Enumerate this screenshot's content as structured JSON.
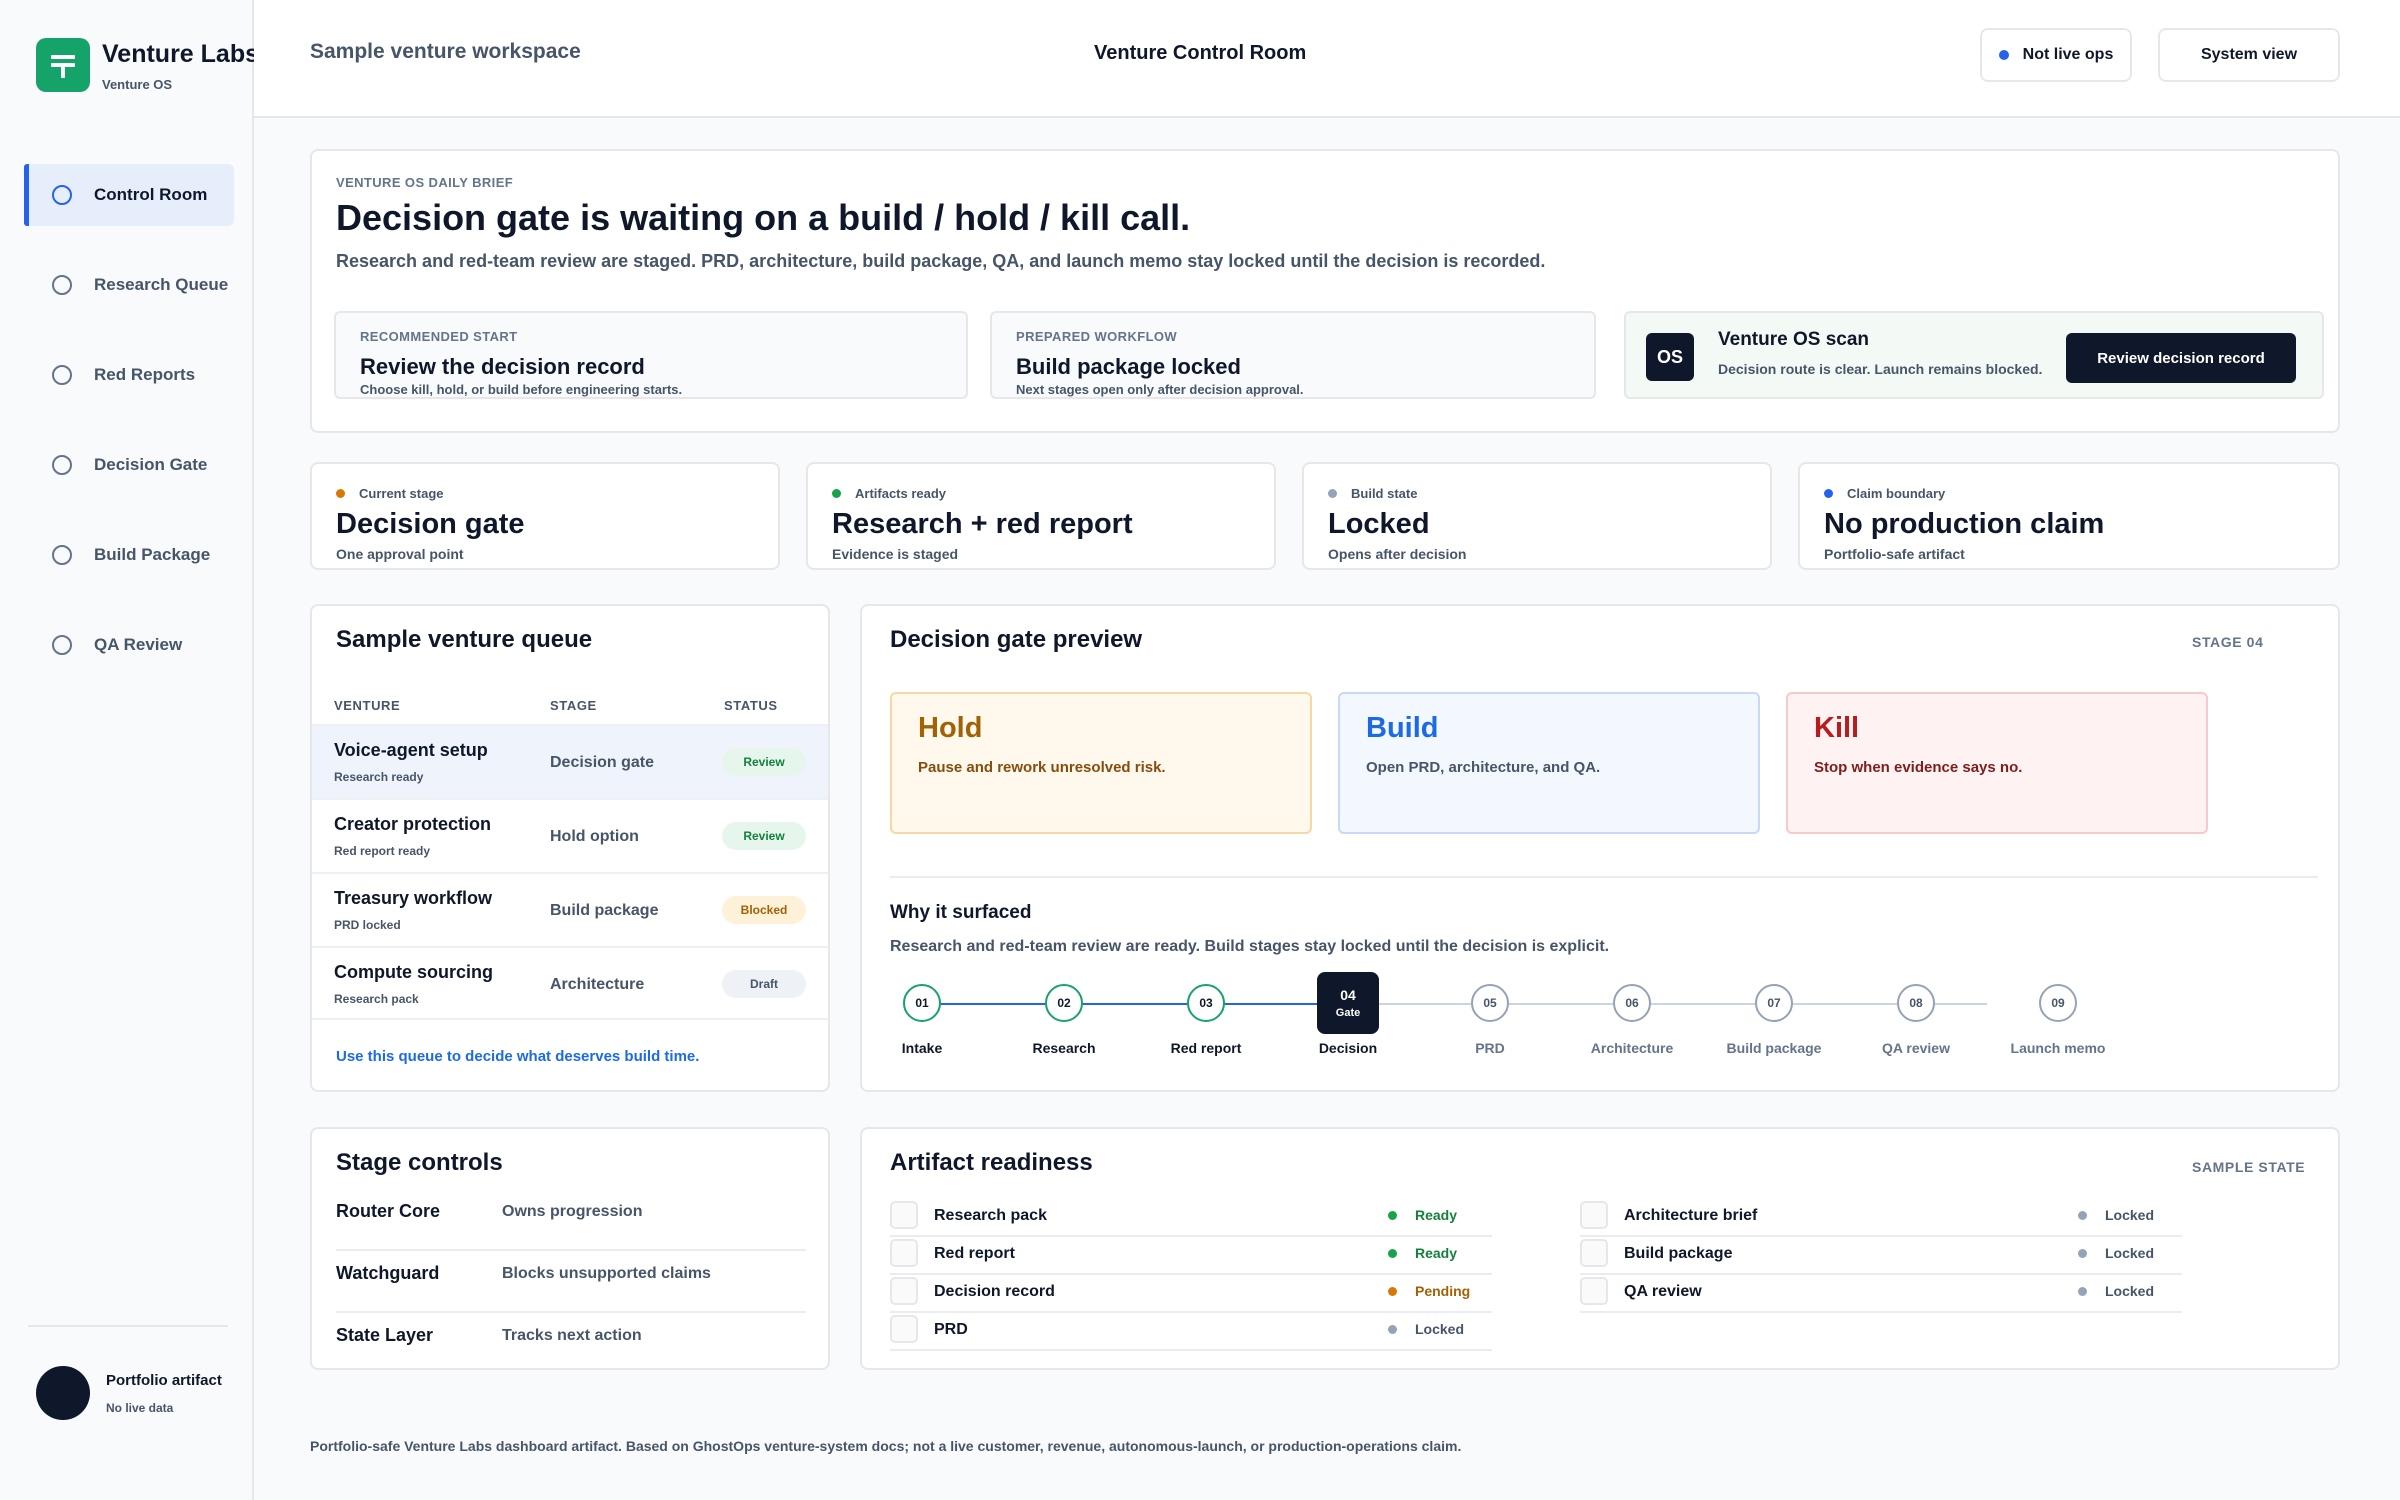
{
  "sidebar": {
    "brand": {
      "name": "Venture Labs",
      "subtitle": "Venture OS",
      "icon": "venture-labs-logo"
    },
    "nav": [
      {
        "label": "Control Room",
        "active": true
      },
      {
        "label": "Research Queue"
      },
      {
        "label": "Red Reports"
      },
      {
        "label": "Decision Gate"
      },
      {
        "label": "Build Package"
      },
      {
        "label": "QA Review"
      }
    ],
    "portfolio": {
      "title": "Portfolio artifact",
      "subtitle": "No live data"
    }
  },
  "header": {
    "workspace": "Sample venture workspace",
    "title": "Venture Control Room",
    "live_ops_label": "Not live ops",
    "system_view_label": "System view"
  },
  "brief": {
    "eyebrow": "VENTURE OS DAILY BRIEF",
    "headline": "Decision gate is waiting on a build / hold / kill call.",
    "description": "Research and red-team review are staged. PRD, architecture, build package, QA, and launch memo stay locked until the decision is recorded.",
    "recommended": {
      "eyebrow": "RECOMMENDED START",
      "title": "Review the decision record",
      "note": "Choose kill, hold, or build before engineering starts."
    },
    "workflow": {
      "eyebrow": "PREPARED WORKFLOW",
      "title": "Build package locked",
      "note": "Next stages open only after decision approval."
    },
    "scan": {
      "badge": "OS",
      "title": "Venture OS scan",
      "note": "Decision route is clear. Launch remains blocked.",
      "button": "Review decision record"
    }
  },
  "stats": [
    {
      "label": "Current stage",
      "value": "Decision gate",
      "note": "One approval point",
      "color": "#d97706"
    },
    {
      "label": "Artifacts ready",
      "value": "Research + red report",
      "note": "Evidence is staged",
      "color": "#16a34a"
    },
    {
      "label": "Build state",
      "value": "Locked",
      "note": "Opens after decision",
      "color": "#94a3b8"
    },
    {
      "label": "Claim boundary",
      "value": "No production claim",
      "note": "Portfolio-safe artifact",
      "color": "#2563eb"
    }
  ],
  "queue": {
    "title": "Sample venture queue",
    "columns": [
      "VENTURE",
      "STAGE",
      "STATUS"
    ],
    "rows": [
      {
        "name": "Voice-agent setup",
        "sub": "Research ready",
        "stage": "Decision gate",
        "status": "Review"
      },
      {
        "name": "Creator protection",
        "sub": "Red report ready",
        "stage": "Hold option",
        "status": "Review"
      },
      {
        "name": "Treasury workflow",
        "sub": "PRD locked",
        "stage": "Build package",
        "status": "Blocked"
      },
      {
        "name": "Compute sourcing",
        "sub": "Research pack",
        "stage": "Architecture",
        "status": "Draft"
      }
    ],
    "footer_link": "Use this queue to decide what deserves build time."
  },
  "gate": {
    "title": "Decision gate preview",
    "stage_tag": "STAGE 04",
    "options": [
      {
        "title": "Hold",
        "note": "Pause and rework unresolved risk."
      },
      {
        "title": "Build",
        "note": "Open PRD, architecture, and QA."
      },
      {
        "title": "Kill",
        "note": "Stop when evidence says no."
      }
    ],
    "why_title": "Why it surfaced",
    "why_note": "Research and red-team review are ready. Build stages stay locked until the decision is explicit.",
    "steps": [
      {
        "num": "01",
        "label": "Intake"
      },
      {
        "num": "02",
        "label": "Research"
      },
      {
        "num": "03",
        "label": "Red report"
      },
      {
        "num": "04",
        "label": "Decision",
        "sub": "Gate"
      },
      {
        "num": "05",
        "label": "PRD"
      },
      {
        "num": "06",
        "label": "Architecture"
      },
      {
        "num": "07",
        "label": "Build package"
      },
      {
        "num": "08",
        "label": "QA review"
      },
      {
        "num": "09",
        "label": "Launch memo"
      }
    ]
  },
  "controls": {
    "title": "Stage controls",
    "rows": [
      {
        "name": "Router Core",
        "desc": "Owns progression"
      },
      {
        "name": "Watchguard",
        "desc": "Blocks unsupported claims"
      },
      {
        "name": "State Layer",
        "desc": "Tracks next action"
      }
    ]
  },
  "artifacts": {
    "title": "Artifact readiness",
    "tag": "SAMPLE STATE",
    "left": [
      {
        "name": "Research pack",
        "status": "Ready"
      },
      {
        "name": "Red report",
        "status": "Ready"
      },
      {
        "name": "Decision record",
        "status": "Pending"
      },
      {
        "name": "PRD",
        "status": "Locked"
      }
    ],
    "right": [
      {
        "name": "Architecture brief",
        "status": "Locked"
      },
      {
        "name": "Build package",
        "status": "Locked"
      },
      {
        "name": "QA review",
        "status": "Locked"
      }
    ]
  },
  "footer": "Portfolio-safe Venture Labs dashboard artifact. Based on GhostOps venture-system docs; not a live customer, revenue, autonomous-launch, or production-operations claim.",
  "colors": {
    "accent": "#2563eb",
    "brand": "#16a36a",
    "ready": "#16a34a",
    "pending": "#d97706",
    "locked": "#94a3b8",
    "dark": "#0f172a"
  }
}
